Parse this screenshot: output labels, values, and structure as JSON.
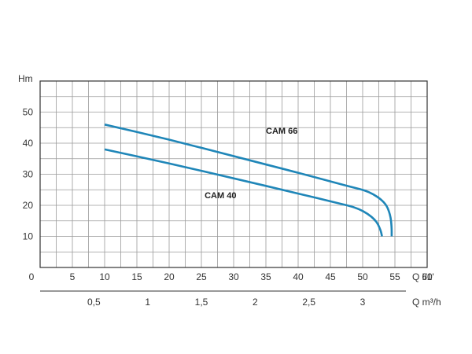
{
  "colors": {
    "series": "#1f86b8",
    "grid": "#9a9a9a",
    "axis": "#333333",
    "text": "#333333"
  },
  "chart_data": {
    "type": "line",
    "title": "",
    "ylabel": "Hm",
    "xlabel": "Q l/1'",
    "xlabel_secondary": "Q m³/h",
    "xlim": [
      0,
      60
    ],
    "ylim": [
      0,
      60
    ],
    "grid": true,
    "x_ticks": [
      "0",
      "5",
      "10",
      "15",
      "20",
      "25",
      "30",
      "35",
      "40",
      "45",
      "50",
      "55",
      "60"
    ],
    "y_ticks": [
      "10",
      "20",
      "30",
      "40",
      "50"
    ],
    "secondary_ticks": [
      "0,5",
      "1",
      "1,5",
      "2",
      "2,5",
      "3"
    ],
    "series": [
      {
        "name": "CAM 66",
        "label_at": [
          35,
          43
        ],
        "points": [
          [
            10,
            46
          ],
          [
            20,
            41.2
          ],
          [
            30,
            35.8
          ],
          [
            40,
            30.5
          ],
          [
            48,
            26
          ],
          [
            51,
            24.5
          ],
          [
            53.5,
            21
          ],
          [
            54.3,
            17
          ],
          [
            54.5,
            13
          ],
          [
            54.5,
            10
          ]
        ]
      },
      {
        "name": "CAM 40",
        "label_at": [
          25.5,
          22.3
        ],
        "points": [
          [
            10,
            38
          ],
          [
            20,
            33.5
          ],
          [
            30,
            28.7
          ],
          [
            40,
            23.8
          ],
          [
            46,
            20.8
          ],
          [
            49.5,
            19
          ],
          [
            52,
            15.5
          ],
          [
            52.8,
            12
          ],
          [
            53,
            10
          ]
        ]
      }
    ]
  }
}
